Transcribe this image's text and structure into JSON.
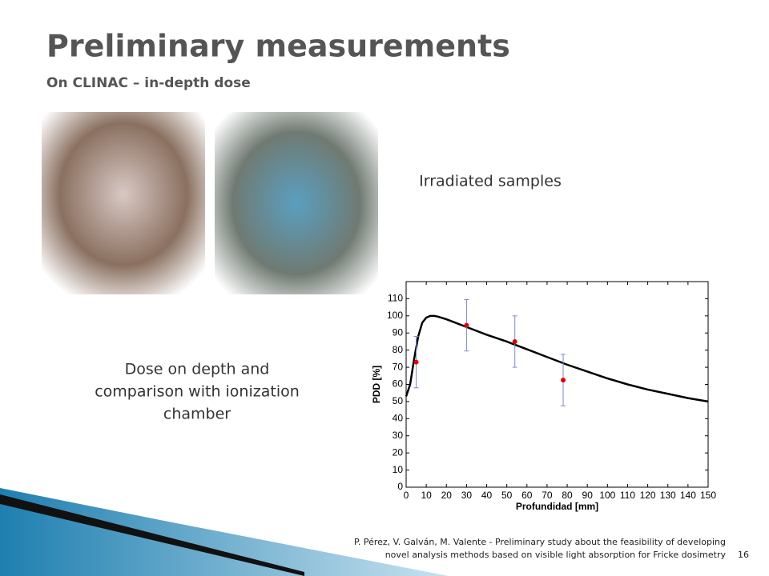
{
  "header": {
    "title": "Preliminary measurements",
    "subtitle": "On CLINAC – in-depth dose"
  },
  "captions": {
    "samples": "Irradiated samples",
    "dose": [
      "Dose on depth and",
      "comparison with ionization",
      "chamber"
    ]
  },
  "footer": {
    "citation": [
      "P. Pérez, V. Galván, M. Valente - Preliminary study about the feasibility of developing",
      "novel analysis methods based on visible light absorption for Fricke dosimetry"
    ],
    "page": "16"
  },
  "chart_data": {
    "type": "line",
    "xlabel": "Profundidad [mm]",
    "ylabel": "PDD [%]",
    "xlim": [
      0,
      150
    ],
    "ylim": [
      0,
      120
    ],
    "xticks": [
      0,
      10,
      20,
      30,
      40,
      50,
      60,
      70,
      80,
      90,
      100,
      110,
      120,
      130,
      140,
      150
    ],
    "yticks": [
      0,
      10,
      20,
      30,
      40,
      50,
      60,
      70,
      80,
      90,
      100,
      110
    ],
    "series": [
      {
        "color": "#000000",
        "x": [
          0,
          2,
          4,
          6,
          8,
          10,
          12,
          14,
          16,
          20,
          30,
          40,
          50,
          60,
          70,
          80,
          90,
          100,
          110,
          120,
          130,
          140,
          150
        ],
        "values": [
          53,
          60,
          75,
          88,
          96,
          99,
          100,
          100,
          99.5,
          98,
          93.5,
          89,
          85,
          80.5,
          76,
          71.5,
          67.5,
          63.5,
          60,
          57,
          54.5,
          52,
          50
        ]
      },
      {
        "color": "#e00000",
        "error_color": "#7b88d8",
        "x": [
          5,
          30,
          54,
          78
        ],
        "values": [
          73,
          94.5,
          85,
          62.5
        ],
        "errors": [
          15,
          15,
          15,
          15
        ]
      }
    ]
  }
}
